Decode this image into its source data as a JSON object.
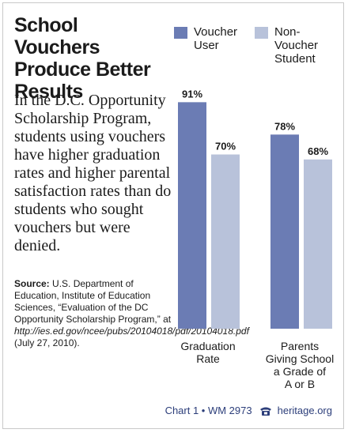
{
  "title": "School Vouchers\nProduce Better\nResults",
  "body_text": "In the D.C. Opportunity Scholarship Program, students using vouchers have higher graduation rates and higher parental satisfaction rates than do students who sought vouchers but were denied.",
  "source": {
    "label": "Source:",
    "text_1": " U.S. Department of Education, Institute of Education Sciences, “Evaluation of the DC Opportunity Scholarship Program,” at ",
    "url": "http://ies.ed.gov/ncee/pubs/20104018/pdf/20104018.pdf",
    "text_2": " (July 27, 2010)."
  },
  "footer": {
    "chart_id": "Chart 1 • WM 2973",
    "site": "heritage.org",
    "icon": "phone-icon"
  },
  "colors": {
    "voucher": "#6b7cb4",
    "non_voucher": "#b8c2da",
    "footer_text": "#2c3e7a"
  },
  "chart_data": {
    "type": "bar",
    "categories": [
      "Graduation\nRate",
      "Parents\nGiving School\na Grade of\nA or B"
    ],
    "series": [
      {
        "name": "Voucher\nUser",
        "values": [
          91,
          78
        ],
        "color": "#6b7cb4"
      },
      {
        "name": "Non-\nVoucher\nStudent",
        "values": [
          70,
          68
        ],
        "color": "#b8c2da"
      }
    ],
    "value_labels": [
      [
        "91%",
        "78%"
      ],
      [
        "70%",
        "68%"
      ]
    ],
    "ylim": [
      0,
      100
    ],
    "grid": false,
    "legend_position": "top-right",
    "xlabel": "",
    "ylabel": ""
  }
}
